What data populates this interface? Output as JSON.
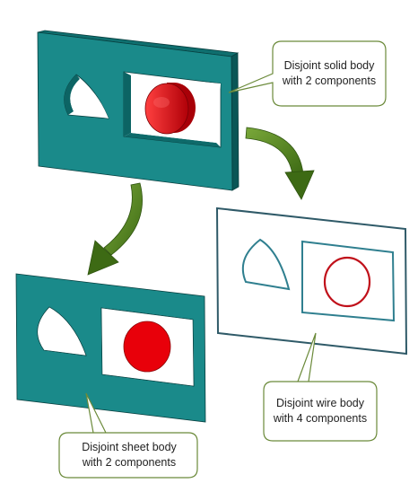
{
  "colors": {
    "teal": "#1a8a8a",
    "teal_top": "#0f6f6f",
    "teal_side": "#0a5656",
    "red": "#e8000a",
    "red_dark": "#a80008",
    "arrow_green": "#4a7d1e",
    "callout_border": "#6b8a3a",
    "wire_teal": "#2f7f8f",
    "wire_red": "#c0101a"
  },
  "callouts": {
    "solid": "Disjoint solid body with 2 components",
    "wire": "Disjoint wire body with 4 components",
    "sheet": "Disjoint sheet body with 2 components"
  }
}
